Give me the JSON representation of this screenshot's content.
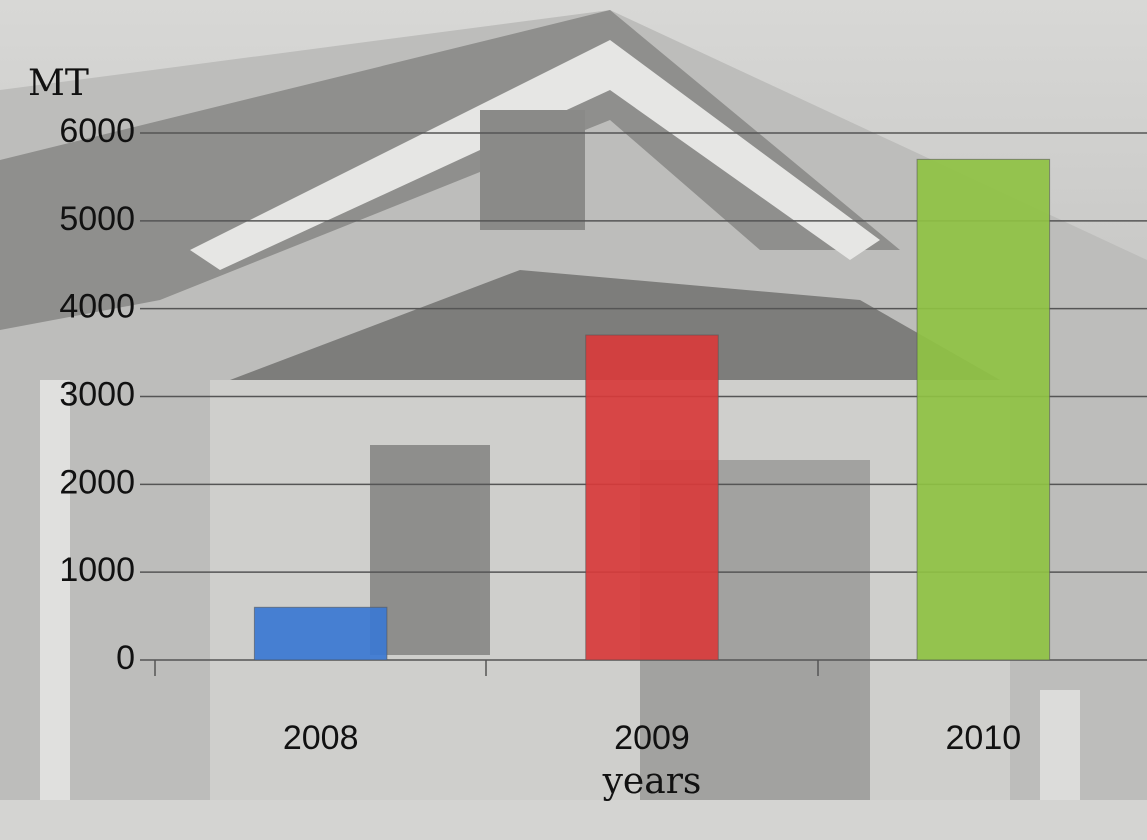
{
  "chart_data": {
    "type": "bar",
    "y_label": "MT",
    "x_label": "years",
    "categories": [
      "2008",
      "2009",
      "2010"
    ],
    "values": [
      600,
      3700,
      5700
    ],
    "colors": [
      "#3b78d2",
      "#d83b3b",
      "#8fc243"
    ],
    "ylim": [
      0,
      6000
    ],
    "yticks": [
      0,
      1000,
      2000,
      3000,
      4000,
      5000,
      6000
    ],
    "grid": true
  }
}
